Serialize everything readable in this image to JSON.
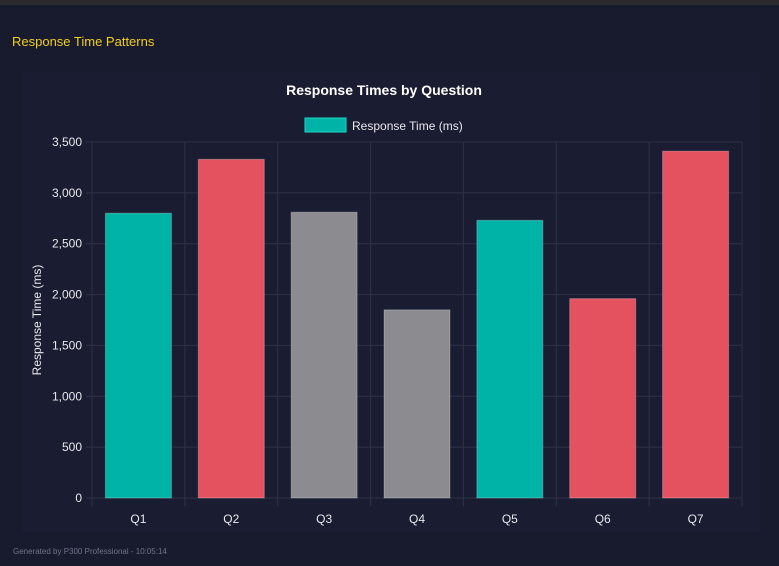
{
  "section_title": "Response Time Patterns",
  "footer": "Generated by P300 Professional - 10:05:14",
  "chart_data": {
    "type": "bar",
    "title": "Response Times by Question",
    "xlabel": "",
    "ylabel": "Response Time (ms)",
    "legend": {
      "position": "top",
      "entries": [
        "Response Time (ms)"
      ]
    },
    "categories": [
      "Q1",
      "Q2",
      "Q3",
      "Q4",
      "Q5",
      "Q6",
      "Q7"
    ],
    "series": [
      {
        "name": "Response Time (ms)",
        "values": [
          2800,
          3330,
          2810,
          1850,
          2730,
          1960,
          3410
        ]
      }
    ],
    "bar_colors": [
      "#00b3a7",
      "#e5525f",
      "#8c8b8f",
      "#8c8b8f",
      "#00b3a7",
      "#e5525f",
      "#e5525f"
    ],
    "legend_color": "#00b3a7",
    "ylim": [
      0,
      3500
    ],
    "yticks": [
      0,
      500,
      1000,
      1500,
      2000,
      2500,
      3000,
      3500
    ],
    "ytick_labels": [
      "0",
      "500",
      "1,000",
      "1,500",
      "2,000",
      "2,500",
      "3,000",
      "3,500"
    ],
    "grid": true
  }
}
